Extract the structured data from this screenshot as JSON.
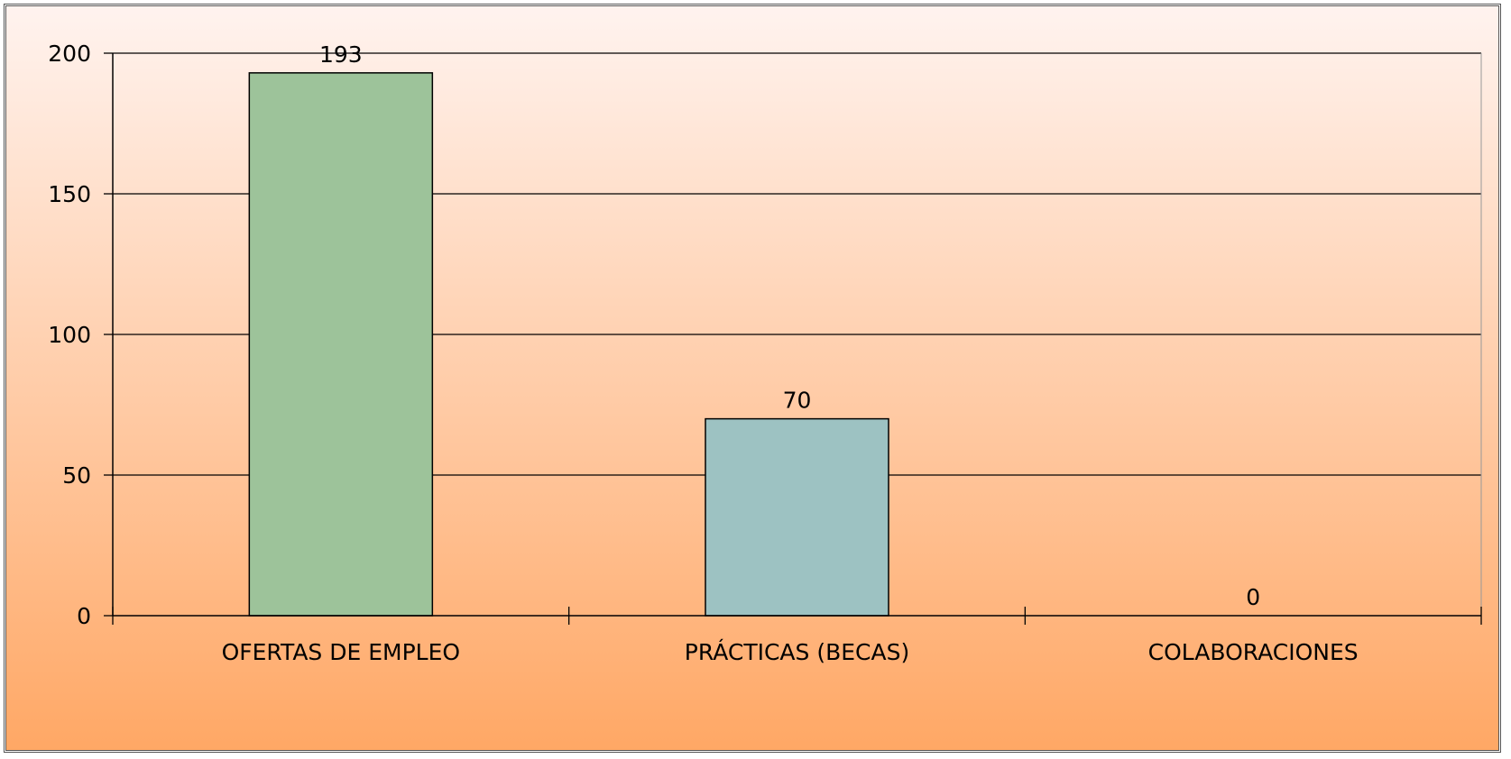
{
  "colors": {
    "background_top": "#fff3ef",
    "background_bottom": "#ffa764",
    "border": "#555555",
    "grid": "#000000"
  },
  "chart_data": {
    "type": "bar",
    "title": "",
    "xlabel": "",
    "ylabel": "",
    "categories": [
      "OFERTAS DE EMPLEO",
      "PRÁCTICAS (BECAS)",
      "COLABORACIONES"
    ],
    "values": [
      193,
      70,
      0
    ],
    "data_labels": [
      "193",
      "70",
      "0"
    ],
    "bar_colors": [
      "#9dc39a",
      "#9dc2c2",
      "#c5c5c5"
    ],
    "ylim": [
      0,
      200
    ],
    "yticks": [
      0,
      50,
      100,
      150,
      200
    ],
    "grid": true,
    "legend": "none"
  }
}
